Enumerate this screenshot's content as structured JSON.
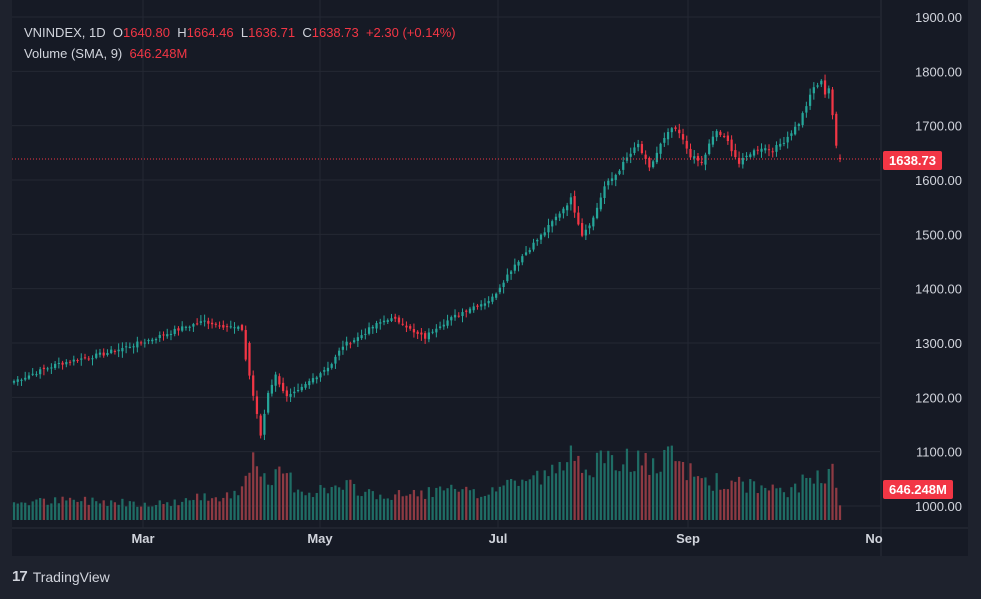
{
  "legend": {
    "symbol": "VNINDEX",
    "interval": "1D",
    "o_label": "O",
    "o_value": "1640.80",
    "h_label": "H",
    "h_value": "1664.46",
    "l_label": "L",
    "l_value": "1636.71",
    "c_label": "C",
    "c_value": "1638.73",
    "change": "+2.30 (+0.14%)",
    "volume_label": "Volume (SMA, 9)",
    "volume_value": "646.248M"
  },
  "last_price_tag": "1638.73",
  "volume_tag": "646.248M",
  "footer": {
    "brand": "TradingView"
  },
  "colors": {
    "up": "#26a69a",
    "down": "#f23645",
    "up_volume": "#1f6d65",
    "down_volume": "#8e3a43",
    "background": "#161a25",
    "grid": "#242833",
    "text": "#d1d4dc"
  },
  "chart_data": {
    "type": "candlestick",
    "x_ticks": [
      "Mar",
      "May",
      "Jul",
      "Sep",
      "No"
    ],
    "y_ticks": [
      "1000.00",
      "1100.00",
      "1200.00",
      "1300.00",
      "1400.00",
      "1500.00",
      "1600.00",
      "1700.00",
      "1800.00",
      "1900.00"
    ],
    "ylim": [
      1000,
      1900
    ],
    "last_close": 1638.73,
    "anchors": [
      [
        0,
        1230
      ],
      [
        12,
        1262
      ],
      [
        24,
        1280
      ],
      [
        36,
        1305
      ],
      [
        46,
        1330
      ],
      [
        51,
        1340
      ],
      [
        56,
        1332
      ],
      [
        61,
        1325
      ],
      [
        62,
        1270
      ],
      [
        63,
        1240
      ],
      [
        66,
        1130
      ],
      [
        68,
        1210
      ],
      [
        70,
        1240
      ],
      [
        73,
        1200
      ],
      [
        76,
        1210
      ],
      [
        80,
        1235
      ],
      [
        85,
        1262
      ],
      [
        88,
        1295
      ],
      [
        92,
        1310
      ],
      [
        96,
        1330
      ],
      [
        100,
        1345
      ],
      [
        104,
        1338
      ],
      [
        107,
        1318
      ],
      [
        110,
        1310
      ],
      [
        113,
        1330
      ],
      [
        117,
        1345
      ],
      [
        122,
        1365
      ],
      [
        126,
        1375
      ],
      [
        128,
        1383
      ],
      [
        131,
        1415
      ],
      [
        134,
        1445
      ],
      [
        138,
        1475
      ],
      [
        142,
        1505
      ],
      [
        146,
        1540
      ],
      [
        149,
        1565
      ],
      [
        152,
        1500
      ],
      [
        155,
        1530
      ],
      [
        158,
        1588
      ],
      [
        161,
        1610
      ],
      [
        164,
        1640
      ],
      [
        167,
        1665
      ],
      [
        170,
        1620
      ],
      [
        173,
        1665
      ],
      [
        176,
        1695
      ],
      [
        178,
        1685
      ],
      [
        181,
        1645
      ],
      [
        184,
        1630
      ],
      [
        186,
        1665
      ],
      [
        188,
        1690
      ],
      [
        191,
        1670
      ],
      [
        194,
        1630
      ],
      [
        197,
        1650
      ],
      [
        200,
        1660
      ],
      [
        203,
        1655
      ],
      [
        206,
        1672
      ],
      [
        210,
        1705
      ],
      [
        214,
        1770
      ],
      [
        216,
        1780
      ],
      [
        217,
        1760
      ],
      [
        218,
        1770
      ],
      [
        219,
        1720
      ],
      [
        220,
        1660
      ],
      [
        221,
        1638.73
      ]
    ],
    "volume_ylim": [
      0,
      400
    ],
    "volume_levels": [
      [
        0,
        55
      ],
      [
        20,
        60
      ],
      [
        40,
        50
      ],
      [
        60,
        85
      ],
      [
        63,
        190
      ],
      [
        65,
        150
      ],
      [
        68,
        100
      ],
      [
        72,
        155
      ],
      [
        76,
        95
      ],
      [
        80,
        90
      ],
      [
        90,
        100
      ],
      [
        100,
        70
      ],
      [
        110,
        85
      ],
      [
        118,
        90
      ],
      [
        124,
        75
      ],
      [
        128,
        95
      ],
      [
        134,
        120
      ],
      [
        140,
        130
      ],
      [
        146,
        150
      ],
      [
        150,
        210
      ],
      [
        154,
        175
      ],
      [
        160,
        170
      ],
      [
        164,
        190
      ],
      [
        168,
        175
      ],
      [
        172,
        160
      ],
      [
        176,
        190
      ],
      [
        180,
        150
      ],
      [
        186,
        120
      ],
      [
        192,
        110
      ],
      [
        198,
        105
      ],
      [
        204,
        85
      ],
      [
        208,
        90
      ],
      [
        212,
        120
      ],
      [
        216,
        145
      ],
      [
        218,
        150
      ],
      [
        219,
        190
      ],
      [
        220,
        120
      ],
      [
        221,
        60
      ]
    ]
  }
}
